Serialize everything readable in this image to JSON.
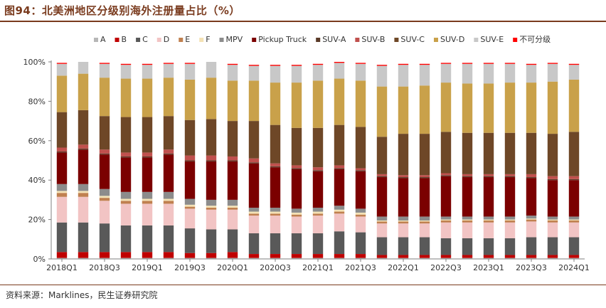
{
  "header": {
    "title": "图94：北美洲地区分级别海外注册量占比（%）"
  },
  "footer": {
    "source": "资料来源：Marklines，民生证券研究院"
  },
  "chart_data": {
    "type": "bar",
    "stacked": true,
    "title": "图94：北美洲地区分级别海外注册量占比（%）",
    "xlabel": "",
    "ylabel": "",
    "ylim": [
      0,
      100
    ],
    "yticks": [
      "0%",
      "20%",
      "40%",
      "60%",
      "80%",
      "100%"
    ],
    "ytick_values": [
      0,
      20,
      40,
      60,
      80,
      100
    ],
    "legend_position": "top",
    "categories": [
      "2018Q1",
      "2018Q2",
      "2018Q3",
      "2018Q4",
      "2019Q1",
      "2019Q2",
      "2019Q3",
      "2019Q4",
      "2020Q1",
      "2020Q2",
      "2020Q3",
      "2020Q4",
      "2021Q1",
      "2021Q2",
      "2021Q3",
      "2021Q4",
      "2022Q1",
      "2022Q2",
      "2022Q3",
      "2022Q4",
      "2023Q1",
      "2023Q2",
      "2023Q3",
      "2023Q4",
      "2024Q1"
    ],
    "xtick_labels": [
      "2018Q1",
      "2018Q3",
      "2019Q1",
      "2019Q3",
      "2020Q1",
      "2020Q3",
      "2021Q1",
      "2021Q3",
      "2022Q1",
      "2022Q3",
      "2023Q1",
      "2023Q3",
      "2024Q1"
    ],
    "series": [
      {
        "name": "A",
        "color": "#b7b7b7",
        "values": [
          0.5,
          0.5,
          0.5,
          0.5,
          0.5,
          0.5,
          0.5,
          0.5,
          0.5,
          0.5,
          0.5,
          0.5,
          0.5,
          0.5,
          0.5,
          0.5,
          0.5,
          0.5,
          0.5,
          0.5,
          0.5,
          0.5,
          0.5,
          0.5,
          0.5
        ]
      },
      {
        "name": "B",
        "color": "#c00000",
        "values": [
          3,
          3,
          3,
          3,
          3,
          3,
          2.5,
          2.5,
          3,
          2,
          2,
          2,
          2,
          2,
          2,
          1.5,
          1.5,
          1.5,
          1.5,
          1.5,
          1.5,
          1.5,
          1.5,
          1.5,
          1.5
        ]
      },
      {
        "name": "C",
        "color": "#595959",
        "values": [
          15,
          15,
          14.5,
          13.5,
          13.5,
          13.5,
          12.5,
          12,
          11.5,
          10.5,
          10.5,
          10.5,
          10.5,
          11.5,
          11,
          9,
          9,
          9,
          8.5,
          8.5,
          8.5,
          8.5,
          9,
          9,
          9
        ]
      },
      {
        "name": "D",
        "color": "#f2c4c4",
        "values": [
          13,
          13,
          11.5,
          11,
          11,
          11,
          10,
          10,
          10,
          9,
          9,
          8.5,
          9,
          9,
          8,
          7,
          7,
          7,
          8,
          8,
          8,
          8,
          8,
          7.5,
          7.5
        ]
      },
      {
        "name": "E",
        "color": "#c0804f",
        "values": [
          2,
          2,
          1.5,
          1.5,
          1.5,
          1.5,
          1,
          1,
          1,
          1,
          1,
          1,
          1,
          1,
          1,
          1,
          1,
          1,
          1,
          1,
          1,
          1,
          1,
          1,
          1
        ]
      },
      {
        "name": "F",
        "color": "#f4e2b5",
        "values": [
          1,
          1,
          1,
          1,
          1,
          1,
          1,
          1,
          1,
          1,
          1,
          1,
          1,
          1,
          1,
          0.5,
          0.5,
          0.5,
          0.5,
          0.5,
          0.5,
          0.5,
          0.5,
          0.5,
          0.5
        ]
      },
      {
        "name": "MPV",
        "color": "#8c8c8c",
        "values": [
          3.5,
          3.5,
          3.5,
          3.5,
          3.5,
          3.5,
          3,
          3,
          3,
          2,
          2,
          2,
          2,
          2,
          2,
          2,
          2,
          2,
          1.5,
          1.5,
          1.5,
          1.5,
          1.5,
          1.5,
          1.5
        ]
      },
      {
        "name": "Pickup Truck",
        "color": "#7b0000",
        "values": [
          16,
          17.5,
          17.5,
          17.5,
          17.5,
          19,
          19,
          19.5,
          19.5,
          22.5,
          20.5,
          20,
          18.5,
          18.5,
          19,
          20,
          19.5,
          19.5,
          20.5,
          20,
          20,
          20,
          19,
          18.5,
          18.5
        ]
      },
      {
        "name": "SUV-A",
        "color": "#5a3a28",
        "values": [
          0.5,
          0.5,
          0.5,
          0.5,
          0.5,
          0.5,
          0.5,
          0.5,
          0.5,
          0.5,
          0.5,
          0.5,
          0.5,
          0.5,
          0.5,
          0.5,
          0.5,
          0.5,
          0.5,
          0.5,
          0.5,
          0.5,
          0.5,
          0.5,
          0.5
        ]
      },
      {
        "name": "SUV-B",
        "color": "#c0504d",
        "values": [
          2,
          2,
          2,
          2,
          2,
          2,
          2.5,
          2.5,
          2,
          2,
          1.5,
          1.5,
          1.5,
          1.5,
          1,
          1,
          1,
          1,
          1,
          1,
          1,
          1,
          1.5,
          1.5,
          1.5
        ]
      },
      {
        "name": "SUV-C",
        "color": "#6e4727",
        "values": [
          18,
          17.5,
          17,
          18,
          18,
          17,
          18,
          18.5,
          18,
          19,
          19.5,
          19,
          20,
          20.5,
          21,
          19,
          21,
          21,
          21,
          21,
          21,
          21,
          21,
          21.5,
          22.5
        ]
      },
      {
        "name": "SUV-D",
        "color": "#c9a14a",
        "values": [
          18.5,
          18.5,
          19.5,
          19.5,
          19.5,
          19.5,
          20.5,
          21,
          20.5,
          20.5,
          21.5,
          23,
          24,
          23.5,
          23.5,
          25.5,
          24,
          24.5,
          25,
          25,
          25,
          25.5,
          25.5,
          26.5,
          26.5
        ]
      },
      {
        "name": "SUV-E",
        "color": "#c8c8c8",
        "values": [
          6,
          6,
          7,
          7,
          7,
          7,
          8,
          8,
          8,
          7.5,
          8.5,
          8.5,
          8,
          8,
          8.5,
          10.5,
          11,
          10.5,
          9.5,
          10,
          10,
          9.5,
          9,
          9,
          7.5
        ]
      },
      {
        "name": "不可分级",
        "color": "#ff0000",
        "values": [
          0.5,
          0.5,
          0.5,
          0.5,
          0.5,
          0.5,
          0.5,
          0.5,
          0.5,
          0.5,
          0.5,
          0.5,
          0.5,
          0.5,
          0.5,
          0.5,
          0.5,
          0.5,
          0.5,
          0.5,
          0.5,
          0.5,
          0.5,
          0.5,
          0.5
        ]
      }
    ]
  }
}
